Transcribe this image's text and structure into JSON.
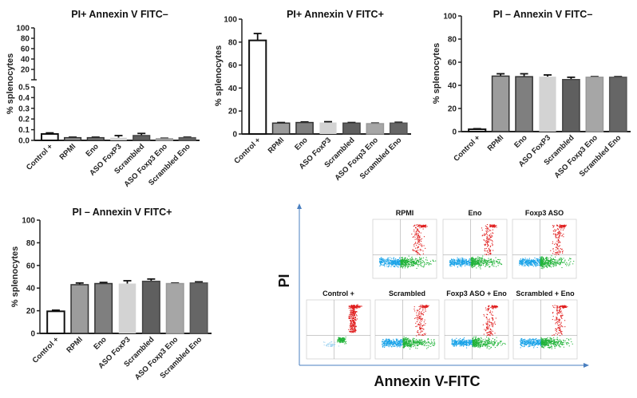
{
  "chart_data": [
    {
      "type": "bar",
      "title": "PI+ Annexin V FITC–",
      "ylabel": "% splenocytes",
      "xlabel": "",
      "categories": [
        "Control +",
        "RPMI",
        "Eno",
        "ASO FoxP3",
        "Scrambled",
        "ASO Foxp3 Eno",
        "Scrambled Eno"
      ],
      "values": [
        0.06,
        0.025,
        0.025,
        0.025,
        0.045,
        0.015,
        0.025
      ],
      "errors": [
        0.01,
        0.005,
        0.005,
        0.02,
        0.02,
        0.005,
        0.005
      ],
      "broken_axis": true,
      "ylim_lower": [
        0,
        0.5
      ],
      "ylim_upper": [
        0,
        100
      ],
      "yticks_lower": [
        "0.0",
        "0.1",
        "0.2",
        "0.3",
        "0.4",
        "0.5"
      ],
      "yticks_upper": [
        "20",
        "40",
        "60",
        "80",
        "100"
      ],
      "bar_colors": [
        "#ffffff",
        "#9c9c9c",
        "#7f7f7f",
        "#d3d3d3",
        "#5f5f5f",
        "#a6a6a6",
        "#666666"
      ],
      "grid": false
    },
    {
      "type": "bar",
      "title": "PI+ Annexin V FITC+",
      "ylabel": "% splenocytes",
      "xlabel": "",
      "categories": [
        "Control +",
        "RPMI",
        "Eno",
        "ASO FoxP3",
        "Scrambled",
        "ASO Foxp3 Eno",
        "Scrambled Eno"
      ],
      "values": [
        81.5,
        9.5,
        10,
        10,
        9.5,
        9,
        9.5
      ],
      "errors": [
        6,
        0.5,
        0.5,
        0.7,
        0.5,
        0.5,
        0.7
      ],
      "ylim": [
        0,
        100
      ],
      "yticks": [
        "0",
        "20",
        "40",
        "60",
        "80",
        "100"
      ],
      "bar_colors": [
        "#ffffff",
        "#9c9c9c",
        "#7f7f7f",
        "#d3d3d3",
        "#5f5f5f",
        "#a6a6a6",
        "#666666"
      ],
      "grid": false
    },
    {
      "type": "bar",
      "title": "PI –  Annexin V FITC–",
      "ylabel": "% splenocytes",
      "xlabel": "",
      "categories": [
        "Control +",
        "RPMI",
        "Eno",
        "ASO FoxP3",
        "Scrambled",
        "ASO Foxp3 Eno",
        "Scrambled Eno"
      ],
      "values": [
        2,
        48,
        47.5,
        47.5,
        45,
        47,
        47
      ],
      "errors": [
        0.5,
        2,
        2.5,
        1.5,
        2,
        0.5,
        0.5
      ],
      "ylim": [
        0,
        100
      ],
      "yticks": [
        "0",
        "20",
        "40",
        "60",
        "80",
        "100"
      ],
      "bar_colors": [
        "#ffffff",
        "#9c9c9c",
        "#7f7f7f",
        "#d3d3d3",
        "#5f5f5f",
        "#a6a6a6",
        "#666666"
      ],
      "grid": false
    },
    {
      "type": "bar",
      "title": "PI –  Annexin V FITC+",
      "ylabel": "% splenocytes",
      "xlabel": "",
      "categories": [
        "Control +",
        "RPMI",
        "Eno",
        "ASO FoxP3",
        "Scrambled",
        "ASO Foxp3 Eno",
        "Scrambled Eno"
      ],
      "values": [
        19.5,
        43,
        44,
        44,
        46,
        44,
        44.5
      ],
      "errors": [
        1,
        1.5,
        1,
        2.5,
        2,
        0.5,
        1
      ],
      "ylim": [
        0,
        100
      ],
      "yticks": [
        "0",
        "20",
        "40",
        "60",
        "80",
        "100"
      ],
      "bar_colors": [
        "#ffffff",
        "#9c9c9c",
        "#7f7f7f",
        "#d3d3d3",
        "#5f5f5f",
        "#a6a6a6",
        "#666666"
      ],
      "grid": false
    }
  ],
  "flow_panel": {
    "type": "scatter",
    "ylabel": "PI",
    "xlabel": "Annexin V-FITC",
    "plots": [
      "RPMI",
      "Eno",
      "Foxp3 ASO",
      "Control +",
      "Scrambled",
      "Foxp3 ASO + Eno",
      "Scrambled + Eno"
    ],
    "colors": {
      "live": "#1aa3e8",
      "early_apoptotic": "#22b33a",
      "late_apoptotic": "#e02020",
      "axis": "#4a7fc0"
    }
  }
}
